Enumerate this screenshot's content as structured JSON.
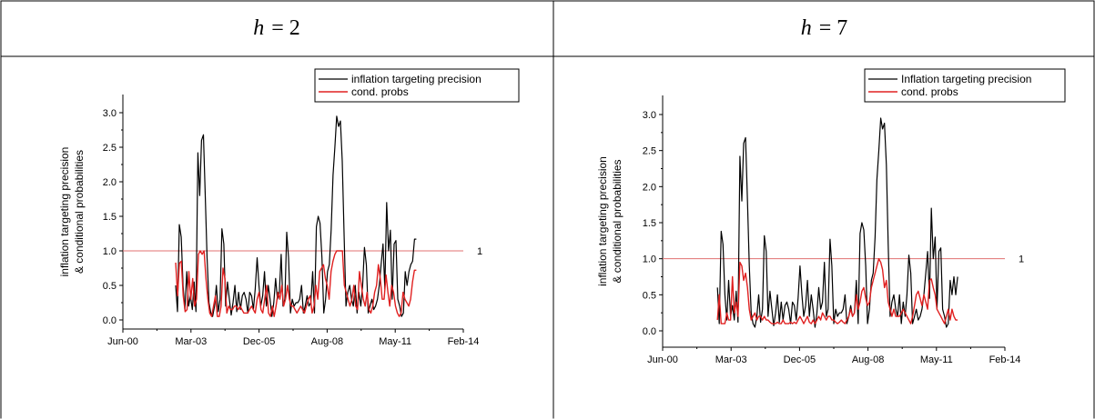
{
  "table": {
    "headers": [
      {
        "var": "h",
        "eq": "= 2"
      },
      {
        "var": "h",
        "eq": "= 7"
      }
    ]
  },
  "chart_data": [
    {
      "type": "line",
      "panel": "h = 2",
      "ylabel_line1": "inflation targeting precision",
      "ylabel_line2": "& conditional probabilities",
      "x_ticks": [
        "Jun-00",
        "Mar-03",
        "Dec-05",
        "Aug-08",
        "May-11",
        "Feb-14"
      ],
      "ylim": [
        -0.2,
        3.2
      ],
      "y_ticks": [
        "0.0",
        "0.5",
        "1.0",
        "1.5",
        "2.0",
        "2.5",
        "3.0"
      ],
      "reference_line": {
        "y": 1.0,
        "label": "1",
        "color": "#e07070"
      },
      "legend_position": "top-right",
      "series": [
        {
          "name": "inflation targeting precision",
          "color": "#000000",
          "values": [
            0.5,
            0.12,
            1.38,
            1.2,
            0.5,
            0.15,
            0.7,
            0.2,
            0.35,
            0.15,
            0.55,
            0.12,
            2.42,
            1.8,
            2.6,
            2.68,
            1.8,
            0.9,
            0.25,
            0.1,
            0.05,
            0.2,
            0.5,
            0.12,
            0.3,
            1.32,
            1.1,
            0.2,
            0.55,
            0.3,
            0.07,
            0.25,
            0.5,
            0.12,
            0.4,
            0.15,
            0.35,
            0.4,
            0.3,
            0.1,
            0.4,
            0.35,
            0.15,
            0.45,
            0.9,
            0.5,
            0.2,
            0.35,
            0.7,
            0.2,
            0.5,
            0.3,
            0.05,
            0.25,
            0.6,
            0.3,
            0.4,
            0.95,
            0.2,
            0.3,
            1.27,
            0.9,
            0.1,
            0.3,
            0.2,
            0.25,
            0.25,
            0.3,
            0.5,
            0.1,
            0.2,
            0.35,
            0.2,
            0.25,
            0.7,
            0.1,
            1.35,
            1.5,
            1.4,
            0.9,
            0.1,
            0.3,
            0.7,
            0.8,
            1.3,
            2.1,
            2.5,
            2.95,
            2.8,
            2.88,
            2.3,
            1.2,
            0.2,
            0.4,
            0.5,
            0.3,
            0.2,
            0.5,
            0.1,
            0.4,
            0.2,
            0.5,
            1.05,
            0.8,
            0.1,
            0.2,
            0.3,
            0.15,
            0.2,
            0.3,
            0.5,
            0.8,
            1.1,
            0.45,
            1.7,
            1.0,
            1.3,
            0.3,
            1.1,
            1.15,
            0.3,
            0.2,
            0.05,
            0.1,
            0.7,
            0.5,
            0.7,
            0.8,
            0.85,
            1.17,
            1.17
          ]
        },
        {
          "name": "cond. probs",
          "color": "#e02020",
          "values": [
            0.83,
            0.35,
            0.82,
            0.85,
            0.35,
            0.12,
            0.15,
            0.7,
            0.3,
            0.6,
            0.2,
            0.3,
            0.95,
            1.0,
            0.95,
            1.0,
            0.6,
            0.3,
            0.1,
            0.05,
            0.2,
            0.35,
            0.05,
            0.05,
            0.2,
            0.75,
            0.6,
            0.1,
            0.2,
            0.15,
            0.15,
            0.2,
            0.2,
            0.15,
            0.2,
            0.15,
            0.1,
            0.1,
            0.1,
            0.15,
            0.2,
            0.15,
            0.1,
            0.3,
            0.4,
            0.15,
            0.1,
            0.3,
            0.5,
            0.1,
            0.05,
            0.2,
            0.05,
            0.2,
            0.4,
            0.3,
            0.5,
            0.2,
            0.3,
            0.5,
            0.3,
            0.2,
            0.2,
            0.15,
            0.1,
            0.15,
            0.2,
            0.15,
            0.1,
            0.2,
            0.3,
            0.35,
            0.1,
            0.2,
            0.5,
            0.3,
            0.7,
            0.75,
            0.8,
            0.6,
            0.5,
            0.3,
            0.7,
            0.85,
            0.95,
            1.0,
            1.0,
            1.0,
            1.0,
            0.5,
            0.4,
            0.3,
            0.2,
            0.3,
            0.5,
            0.2,
            0.15,
            0.7,
            0.5,
            0.3,
            0.2,
            0.4,
            0.15,
            0.1,
            0.2,
            0.4,
            0.5,
            0.8,
            0.6,
            0.3,
            0.3,
            0.65,
            0.4,
            0.2,
            0.5,
            0.4,
            0.2,
            0.1,
            0.05,
            0.1,
            0.4,
            0.3,
            0.25,
            0.2,
            0.3,
            0.55,
            0.72,
            0.72
          ]
        }
      ]
    },
    {
      "type": "line",
      "panel": "h = 7",
      "ylabel_line1": "inflation targeting precision",
      "ylabel_line2": "& conditional probabilities",
      "x_ticks": [
        "Jun-00",
        "Mar-03",
        "Dec-05",
        "Aug-08",
        "May-11",
        "Feb-14"
      ],
      "ylim": [
        -0.2,
        3.2
      ],
      "y_ticks": [
        "0.0",
        "0.5",
        "1.0",
        "1.5",
        "2.0",
        "2.5",
        "3.0"
      ],
      "reference_line": {
        "y": 1.0,
        "label": "1",
        "color": "#e07070"
      },
      "legend_position": "top-right",
      "series": [
        {
          "name": "Inflation targeting precision",
          "color": "#000000",
          "values": [
            0.6,
            0.1,
            1.38,
            1.2,
            0.5,
            0.15,
            0.7,
            0.2,
            0.35,
            0.15,
            0.55,
            0.12,
            2.42,
            1.8,
            2.6,
            2.68,
            1.8,
            0.9,
            0.25,
            0.1,
            0.05,
            0.2,
            0.5,
            0.12,
            0.3,
            1.32,
            1.1,
            0.2,
            0.55,
            0.3,
            0.07,
            0.25,
            0.5,
            0.12,
            0.4,
            0.15,
            0.35,
            0.4,
            0.3,
            0.1,
            0.4,
            0.35,
            0.15,
            0.45,
            0.9,
            0.5,
            0.2,
            0.35,
            0.7,
            0.2,
            0.5,
            0.3,
            0.05,
            0.25,
            0.6,
            0.3,
            0.4,
            0.95,
            0.2,
            0.3,
            1.27,
            0.9,
            0.1,
            0.3,
            0.2,
            0.25,
            0.25,
            0.3,
            0.5,
            0.1,
            0.2,
            0.35,
            0.2,
            0.25,
            0.7,
            0.1,
            1.35,
            1.5,
            1.4,
            0.9,
            0.1,
            0.3,
            0.7,
            0.8,
            1.3,
            2.1,
            2.5,
            2.95,
            2.8,
            2.88,
            2.3,
            1.2,
            0.2,
            0.4,
            0.5,
            0.3,
            0.2,
            0.5,
            0.1,
            0.4,
            0.2,
            0.5,
            1.05,
            0.8,
            0.1,
            0.2,
            0.3,
            0.15,
            0.2,
            0.3,
            0.5,
            0.8,
            1.1,
            0.45,
            1.7,
            1.0,
            1.3,
            0.3,
            1.1,
            1.15,
            0.3,
            0.2,
            0.05,
            0.1,
            0.7,
            0.5,
            0.75,
            0.5,
            0.75
          ]
        },
        {
          "name": "cond. probs",
          "color": "#e02020",
          "values": [
            0.15,
            0.5,
            0.1,
            0.1,
            0.1,
            0.25,
            0.15,
            0.15,
            0.75,
            0.25,
            0.4,
            0.2,
            0.95,
            0.9,
            0.7,
            0.8,
            0.6,
            0.3,
            0.15,
            0.2,
            0.25,
            0.15,
            0.2,
            0.2,
            0.15,
            0.2,
            0.15,
            0.15,
            0.12,
            0.1,
            0.1,
            0.1,
            0.12,
            0.1,
            0.1,
            0.15,
            0.1,
            0.1,
            0.1,
            0.12,
            0.1,
            0.12,
            0.1,
            0.15,
            0.2,
            0.15,
            0.1,
            0.15,
            0.2,
            0.12,
            0.1,
            0.15,
            0.1,
            0.15,
            0.2,
            0.15,
            0.25,
            0.2,
            0.15,
            0.2,
            0.2,
            0.15,
            0.15,
            0.12,
            0.1,
            0.12,
            0.15,
            0.12,
            0.1,
            0.15,
            0.2,
            0.3,
            0.2,
            0.25,
            0.5,
            0.3,
            0.4,
            0.55,
            0.6,
            0.45,
            0.35,
            0.4,
            0.6,
            0.7,
            0.8,
            0.9,
            1.0,
            0.95,
            0.85,
            0.6,
            0.7,
            0.4,
            0.3,
            0.2,
            0.3,
            0.2,
            0.2,
            0.2,
            0.25,
            0.3,
            0.25,
            0.2,
            0.15,
            0.1,
            0.2,
            0.35,
            0.5,
            0.55,
            0.45,
            0.35,
            0.5,
            0.4,
            0.3,
            0.7,
            0.72,
            0.6,
            0.5,
            0.3,
            0.25,
            0.2,
            0.15,
            0.1,
            0.2,
            0.3,
            0.15,
            0.3,
            0.2,
            0.15,
            0.15
          ]
        }
      ]
    }
  ]
}
